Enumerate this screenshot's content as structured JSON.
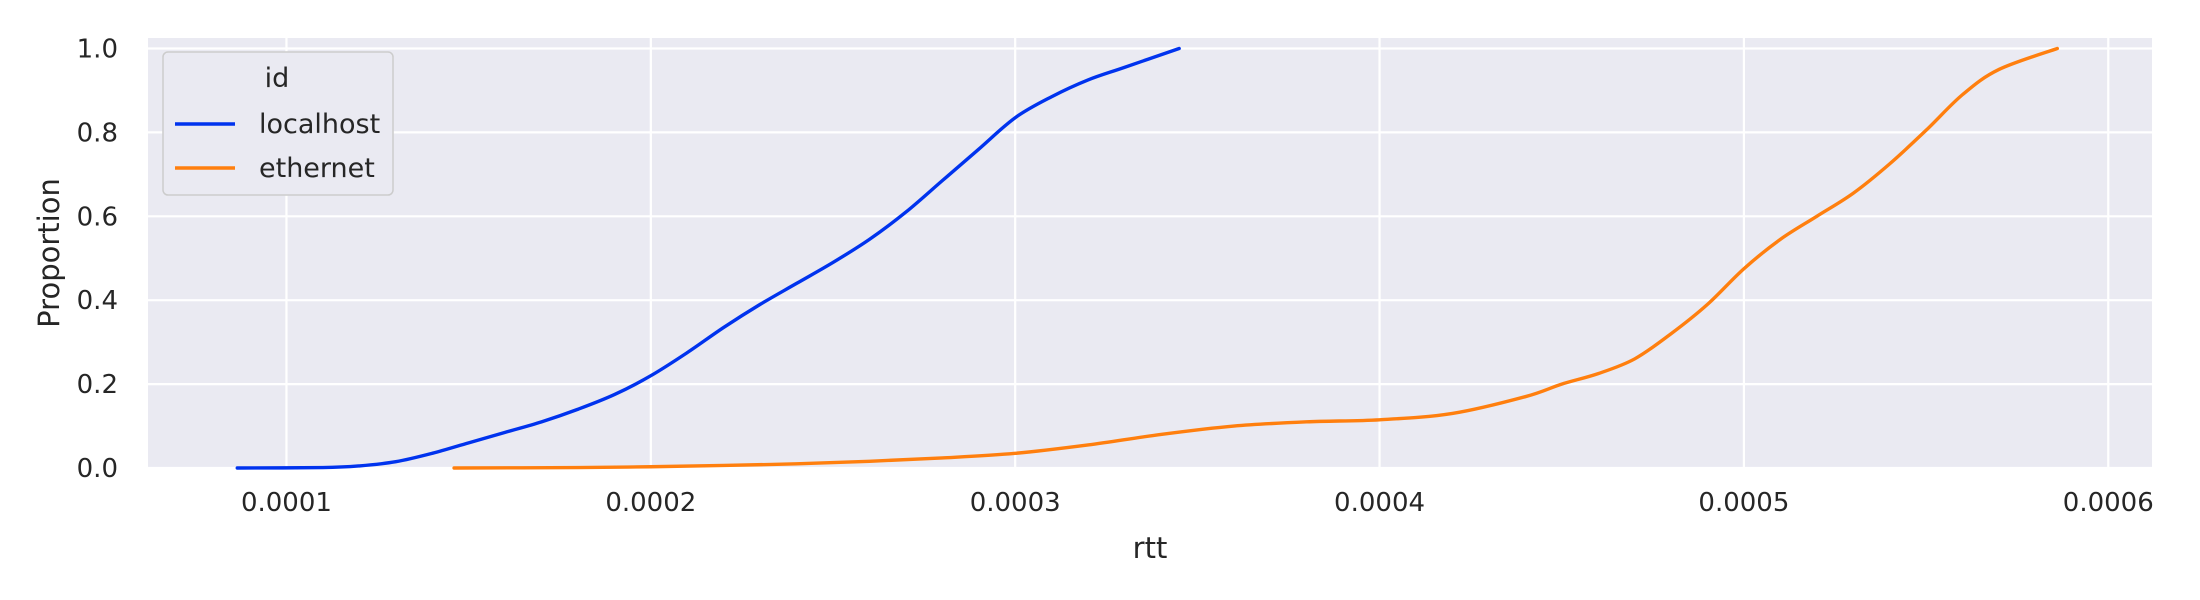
{
  "chart_data": {
    "type": "line",
    "title": "",
    "xlabel": "rtt",
    "ylabel": "Proportion",
    "xlim": [
      6.2e-05,
      0.000612
    ],
    "ylim": [
      0.0,
      1.025
    ],
    "grid": true,
    "legend": {
      "title": "id",
      "placement": "top-left"
    },
    "x_ticks": [
      {
        "value": 0.0001,
        "label": "0.0001"
      },
      {
        "value": 0.0002,
        "label": "0.0002"
      },
      {
        "value": 0.0003,
        "label": "0.0003"
      },
      {
        "value": 0.0004,
        "label": "0.0004"
      },
      {
        "value": 0.0005,
        "label": "0.0005"
      },
      {
        "value": 0.0006,
        "label": "0.0006"
      }
    ],
    "y_ticks": [
      {
        "value": 0.0,
        "label": "0.0"
      },
      {
        "value": 0.2,
        "label": "0.2"
      },
      {
        "value": 0.4,
        "label": "0.4"
      },
      {
        "value": 0.6,
        "label": "0.6"
      },
      {
        "value": 0.8,
        "label": "0.8"
      },
      {
        "value": 1.0,
        "label": "1.0"
      }
    ],
    "series": [
      {
        "name": "localhost",
        "color": "#0033ee",
        "x": [
          8.65e-05,
          0.00011,
          0.00012,
          0.00013,
          0.00014,
          0.00015,
          0.00016,
          0.00017,
          0.00018,
          0.00019,
          0.0002,
          0.00021,
          0.00022,
          0.00023,
          0.00024,
          0.00025,
          0.00026,
          0.00027,
          0.00028,
          0.00029,
          0.0003,
          0.00031,
          0.00032,
          0.00033,
          0.000345
        ],
        "values": [
          0.0,
          0.001,
          0.005,
          0.015,
          0.035,
          0.06,
          0.085,
          0.11,
          0.14,
          0.175,
          0.22,
          0.275,
          0.335,
          0.39,
          0.44,
          0.49,
          0.545,
          0.61,
          0.685,
          0.76,
          0.835,
          0.885,
          0.925,
          0.955,
          1.0
        ]
      },
      {
        "name": "ethernet",
        "color": "#ff7f0e",
        "x": [
          0.000146,
          0.00018,
          0.0002,
          0.00022,
          0.00024,
          0.00026,
          0.00028,
          0.0003,
          0.00032,
          0.00034,
          0.00036,
          0.00038,
          0.0004,
          0.00042,
          0.00044,
          0.00045,
          0.00046,
          0.00047,
          0.00048,
          0.00049,
          0.0005,
          0.00051,
          0.00052,
          0.00053,
          0.00054,
          0.00055,
          0.00056,
          0.00057,
          0.000586
        ],
        "values": [
          0.0,
          0.001,
          0.003,
          0.006,
          0.01,
          0.016,
          0.024,
          0.035,
          0.055,
          0.08,
          0.1,
          0.11,
          0.115,
          0.13,
          0.17,
          0.2,
          0.225,
          0.26,
          0.32,
          0.39,
          0.475,
          0.545,
          0.6,
          0.655,
          0.725,
          0.805,
          0.89,
          0.95,
          1.0
        ]
      }
    ]
  }
}
